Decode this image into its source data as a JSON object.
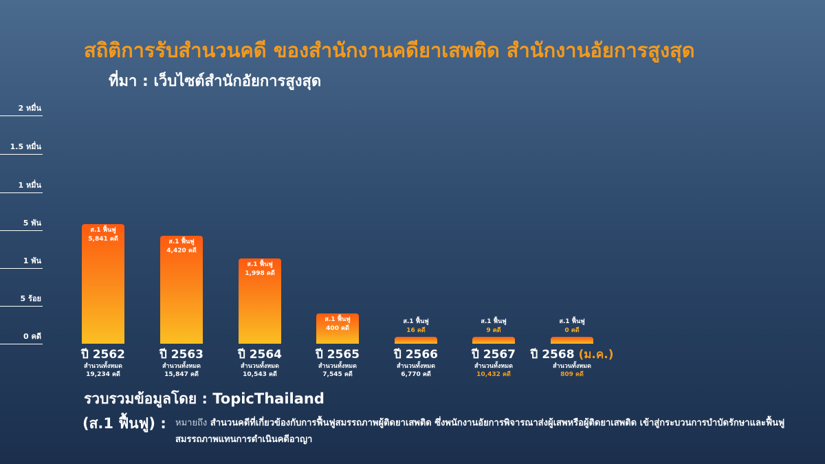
{
  "title": "สถิติการรับสำนวนคดี ของสำนักงานคดียาเสพติด สำนักงานอัยการสูงสุด",
  "source": "ที่มา : เว็บไซต์สำนักอัยการสูงสุด",
  "credit": "รวบรวมข้อมูลโดย : TopicThailand",
  "note": {
    "term": "(ส.1 ฟื้นฟู) :",
    "lead": "หมายถึง",
    "text": "สำนวนคดีที่เกี่ยวข้องกับการฟื้นฟูสมรรถภาพผู้ติดยาเสพติด ซึ่งพนักงานอัยการพิจารณาส่งผู้เสพหรือผู้ติดยาเสพติด เข้าสู่กระบวนการบำบัดรักษาและฟื้นฟูสมรรถภาพแทนการดำเนินคดีอาญา"
  },
  "colors": {
    "title": "#f59a1c",
    "bar_top": "#ff5a10",
    "bar_bottom": "#fbbf22",
    "highlight": "#f5a020"
  },
  "chart_data": {
    "type": "bar",
    "y_scale": "non-linear (custom tick spacing)",
    "y_ticks": [
      {
        "label": "0 คดี",
        "value": 0
      },
      {
        "label": "5 ร้อย",
        "value": 500
      },
      {
        "label": "1 พัน",
        "value": 1000
      },
      {
        "label": "5 พัน",
        "value": 5000
      },
      {
        "label": "1 หมื่น",
        "value": 10000
      },
      {
        "label": "1.5 หมื่น",
        "value": 15000
      },
      {
        "label": "2 หมื่น",
        "value": 20000
      }
    ],
    "bar_series_label": "ส.1 ฟื้นฟู",
    "unit": "คดี",
    "total_label": "สำนวนทั้งหมด",
    "categories": [
      "ปี 2562",
      "ปี 2563",
      "ปี 2564",
      "ปี 2565",
      "ปี 2566",
      "ปี 2567",
      "ปี 2568"
    ],
    "category_suffix": [
      "",
      "",
      "",
      "",
      "",
      "",
      "(ม.ค.)"
    ],
    "values": [
      5841,
      4420,
      1998,
      400,
      16,
      9,
      0
    ],
    "value_labels": [
      "5,841 คดี",
      "4,420 คดี",
      "1,998 คดี",
      "400 คดี",
      "16 คดี",
      "9 คดี",
      "0 คดี"
    ],
    "totals": [
      19234,
      15847,
      10543,
      7545,
      6770,
      10432,
      809
    ],
    "total_labels": [
      "19,234 คดี",
      "15,847 คดี",
      "10,543 คดี",
      "7,545 คดี",
      "6,770 คดี",
      "10,432 คดี",
      "809 คดี"
    ],
    "total_highlight": [
      false,
      false,
      false,
      false,
      false,
      true,
      true
    ]
  }
}
